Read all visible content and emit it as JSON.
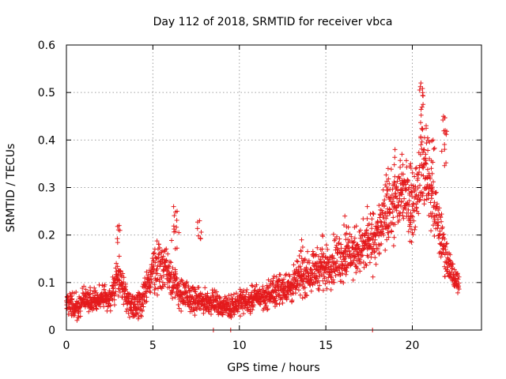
{
  "chart_data": {
    "type": "scatter",
    "title": "Day 112 of 2018, SRMTID for receiver vbca",
    "xlabel": "GPS time / hours",
    "ylabel": "SRMTID / TECUs",
    "xlim": [
      0,
      24
    ],
    "ylim": [
      0,
      0.6
    ],
    "xticks": [
      0,
      5,
      10,
      15,
      20
    ],
    "yticks": [
      0,
      0.1,
      0.2,
      0.3,
      0.4,
      0.5,
      0.6
    ],
    "xtick_labels": [
      "0",
      "5",
      "10",
      "15",
      "20"
    ],
    "ytick_labels": [
      "0",
      "0.1",
      "0.2",
      "0.3",
      "0.4",
      "0.5",
      "0.6"
    ],
    "grid": true,
    "marker": "+",
    "color": "#e41a1c",
    "series": [
      {
        "name": "SRMTID",
        "x_start": 0.0,
        "x_step": 0.5,
        "envelope": [
          0.06,
          0.05,
          0.06,
          0.06,
          0.07,
          0.06,
          0.12,
          0.06,
          0.05,
          0.07,
          0.13,
          0.14,
          0.12,
          0.08,
          0.07,
          0.06,
          0.06,
          0.06,
          0.05,
          0.05,
          0.06,
          0.06,
          0.07,
          0.07,
          0.08,
          0.09,
          0.09,
          0.11,
          0.12,
          0.13,
          0.13,
          0.15,
          0.15,
          0.16,
          0.17,
          0.18,
          0.2,
          0.24,
          0.26,
          0.3,
          0.25,
          0.35,
          0.3,
          0.22,
          0.15,
          0.1
        ],
        "spread": [
          0.03,
          0.03,
          0.03,
          0.03,
          0.03,
          0.03,
          0.05,
          0.03,
          0.03,
          0.04,
          0.06,
          0.07,
          0.06,
          0.04,
          0.04,
          0.03,
          0.03,
          0.03,
          0.02,
          0.03,
          0.03,
          0.03,
          0.03,
          0.03,
          0.04,
          0.04,
          0.04,
          0.05,
          0.05,
          0.05,
          0.05,
          0.06,
          0.06,
          0.06,
          0.06,
          0.07,
          0.07,
          0.08,
          0.08,
          0.09,
          0.08,
          0.1,
          0.09,
          0.07,
          0.05,
          0.03
        ],
        "peaks": [
          {
            "x": 3.05,
            "y": 0.22
          },
          {
            "x": 6.2,
            "y": 0.26
          },
          {
            "x": 6.4,
            "y": 0.25
          },
          {
            "x": 7.7,
            "y": 0.23
          },
          {
            "x": 13.6,
            "y": 0.19
          },
          {
            "x": 14.8,
            "y": 0.2
          },
          {
            "x": 16.1,
            "y": 0.24
          },
          {
            "x": 17.4,
            "y": 0.26
          },
          {
            "x": 18.6,
            "y": 0.34
          },
          {
            "x": 19.0,
            "y": 0.38
          },
          {
            "x": 19.4,
            "y": 0.37
          },
          {
            "x": 19.9,
            "y": 0.35
          },
          {
            "x": 20.5,
            "y": 0.52
          },
          {
            "x": 20.6,
            "y": 0.5
          },
          {
            "x": 20.8,
            "y": 0.43
          },
          {
            "x": 21.2,
            "y": 0.4
          },
          {
            "x": 21.8,
            "y": 0.45
          },
          {
            "x": 21.9,
            "y": 0.42
          }
        ],
        "zeros": [
          8.5,
          9.5,
          17.7
        ]
      }
    ]
  }
}
